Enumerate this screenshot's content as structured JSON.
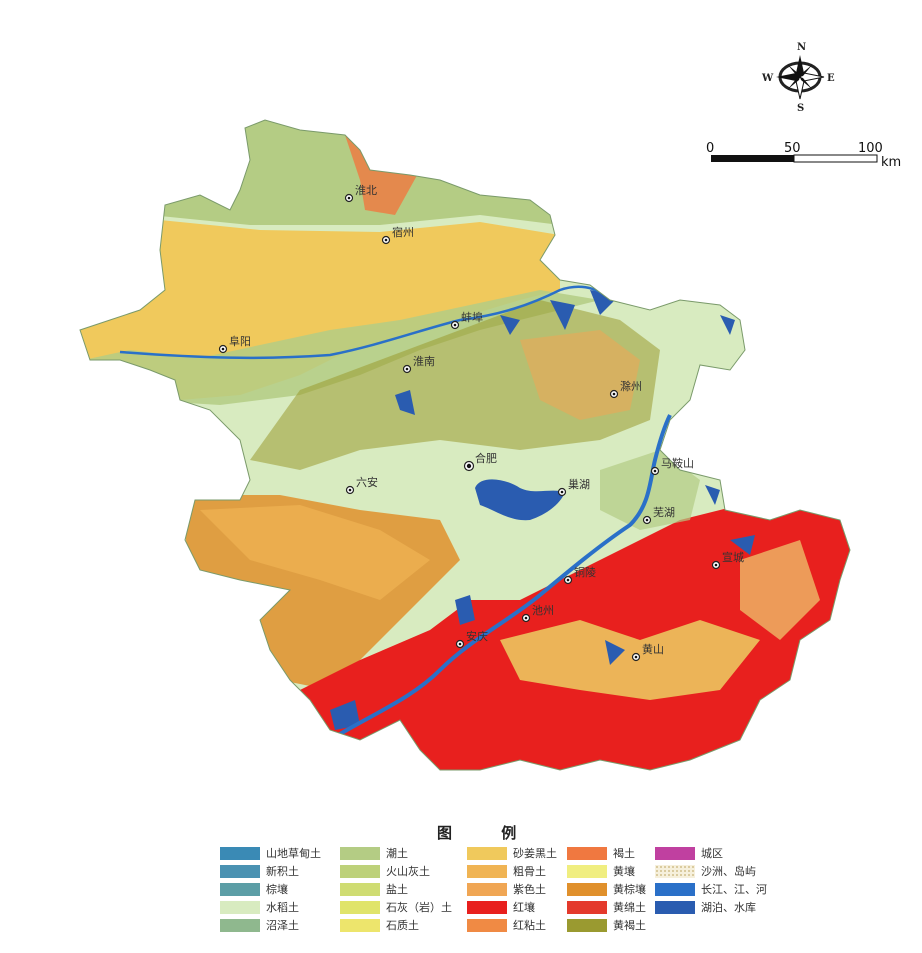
{
  "compass": {
    "n": "N",
    "s": "S",
    "e": "E",
    "w": "W"
  },
  "scale": {
    "labels": [
      "0",
      "50",
      "100"
    ],
    "unit": "km"
  },
  "cities": [
    {
      "name": "淮北",
      "capital": false
    },
    {
      "name": "宿州",
      "capital": false
    },
    {
      "name": "蚌埠",
      "capital": false
    },
    {
      "name": "阜阳",
      "capital": false
    },
    {
      "name": "淮南",
      "capital": false
    },
    {
      "name": "滁州",
      "capital": false
    },
    {
      "name": "合肥",
      "capital": true
    },
    {
      "name": "六安",
      "capital": false
    },
    {
      "name": "巢湖",
      "capital": false
    },
    {
      "name": "马鞍山",
      "capital": false
    },
    {
      "name": "芜湖",
      "capital": false
    },
    {
      "name": "铜陵",
      "capital": false
    },
    {
      "name": "池州",
      "capital": false
    },
    {
      "name": "安庆",
      "capital": false
    },
    {
      "name": "黄山",
      "capital": false
    },
    {
      "name": "宣城",
      "capital": false
    }
  ],
  "legend": {
    "title": "图 例",
    "items": [
      {
        "label": "山地草甸土",
        "color": "#3a8ab5"
      },
      {
        "label": "新积土",
        "color": "#4a92b2"
      },
      {
        "label": "棕壤",
        "color": "#5c9ea6"
      },
      {
        "label": "水稻土",
        "color": "#d8ebc0"
      },
      {
        "label": "沼泽土",
        "color": "#8fb88e"
      },
      {
        "label": "潮土",
        "color": "#b4cc84"
      },
      {
        "label": "火山灰土",
        "color": "#bdd17a"
      },
      {
        "label": "盐土",
        "color": "#cfdc72"
      },
      {
        "label": "石灰（岩）土",
        "color": "#e0e46a"
      },
      {
        "label": "石质土",
        "color": "#ede56c"
      },
      {
        "label": "砂姜黑土",
        "color": "#f0c95c"
      },
      {
        "label": "粗骨土",
        "color": "#f0b454"
      },
      {
        "label": "紫色土",
        "color": "#f0a654"
      },
      {
        "label": "红壤",
        "color": "#e8201e"
      },
      {
        "label": "红粘土",
        "color": "#f08a44"
      },
      {
        "label": "褐土",
        "color": "#f07840"
      },
      {
        "label": "黄壤",
        "color": "#f0ee80"
      },
      {
        "label": "黄棕壤",
        "color": "#e0902c"
      },
      {
        "label": "黄绵土",
        "color": "#e43a2c"
      },
      {
        "label": "黄褐土",
        "color": "#9a9a30"
      },
      {
        "label": "城区",
        "color": "#c040a0"
      },
      {
        "label": "沙洲、岛屿",
        "color": "#f6f0dc"
      },
      {
        "label": "长江、江、河",
        "color": "#2a70c8"
      },
      {
        "label": "湖泊、水库",
        "color": "#2a5cb0"
      }
    ]
  }
}
